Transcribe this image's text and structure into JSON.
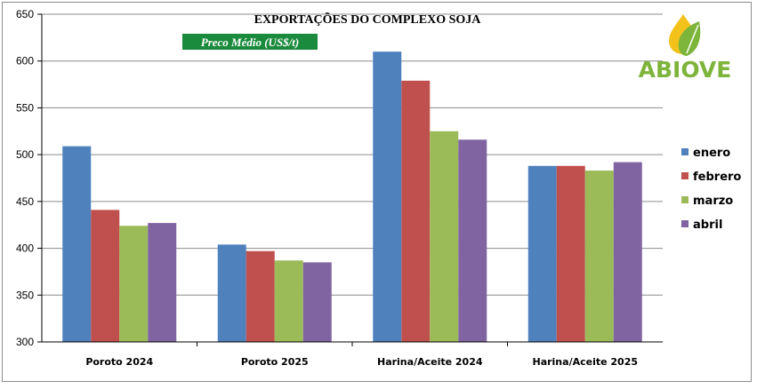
{
  "chart_data": {
    "type": "bar",
    "title": "EXPORTAÇÕES DO COMPLEXO SOJA",
    "subtitle": "Preco Médio (US$/t)",
    "categories": [
      "Poroto 2024",
      "Poroto 2025",
      "Harina/Aceite 2024",
      "Harina/Aceite 2025"
    ],
    "series": [
      {
        "name": "enero",
        "color": "#4f81bd",
        "values": [
          509,
          404,
          610,
          488
        ]
      },
      {
        "name": "febrero",
        "color": "#c0504d",
        "values": [
          441,
          397,
          579,
          488
        ]
      },
      {
        "name": "marzo",
        "color": "#9bbb59",
        "values": [
          424,
          387,
          525,
          483
        ]
      },
      {
        "name": "abril",
        "color": "#8064a2",
        "values": [
          427,
          385,
          516,
          492
        ]
      }
    ],
    "ylim": [
      300,
      650
    ],
    "yticks": [
      300,
      350,
      400,
      450,
      500,
      550,
      600,
      650
    ],
    "xlabel": "",
    "ylabel": "",
    "grid": true,
    "legend_position": "right"
  },
  "logo": {
    "text": "ABIOVE",
    "icon": "leaf-drop-logo-icon"
  },
  "colors": {
    "subtitle_bg": "#1a8a3c",
    "gridline": "#8c8c8c",
    "logo_green": "#7db43a",
    "logo_yellow": "#f2c21b"
  }
}
